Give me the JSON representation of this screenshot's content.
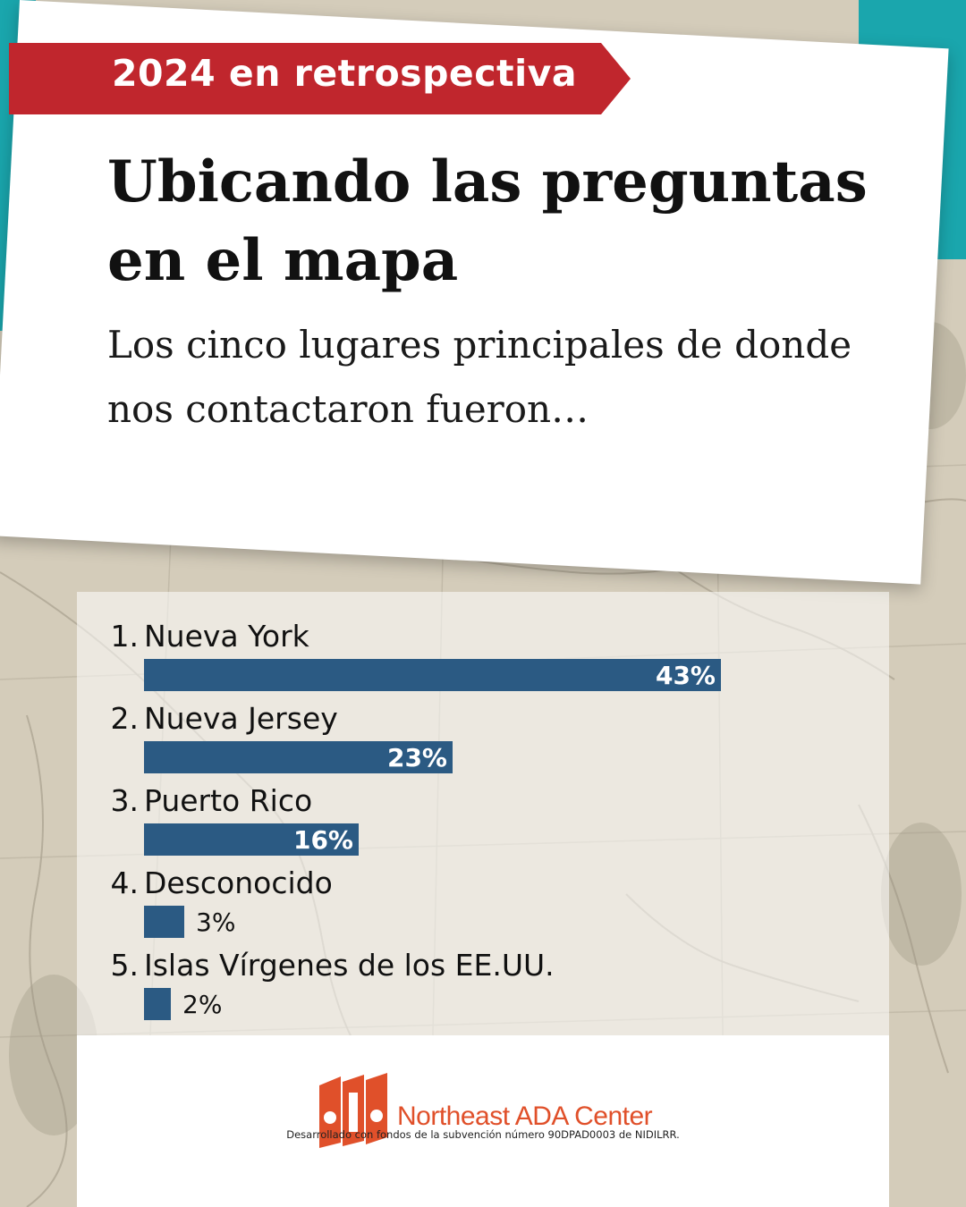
{
  "banner": {
    "label": "2024 en retrospectiva",
    "color": "#c0262d"
  },
  "title": "Ubicando las preguntas en el mapa",
  "subtitle": "Los cinco lugares principales de donde nos contactaron fueron…",
  "chart_data": {
    "type": "bar",
    "orientation": "horizontal",
    "bar_color": "#2b5a83",
    "value_suffix": "%",
    "items": [
      {
        "rank": "1.",
        "label": "Nueva York",
        "value": 43,
        "display": "43%"
      },
      {
        "rank": "2.",
        "label": "Nueva Jersey",
        "value": 23,
        "display": "23%"
      },
      {
        "rank": "3.",
        "label": "Puerto Rico",
        "value": 16,
        "display": "16%"
      },
      {
        "rank": "4.",
        "label": "Desconocido",
        "value": 3,
        "display": "3%"
      },
      {
        "rank": "5.",
        "label": "Islas Vírgenes de los EE.UU.",
        "value": 2,
        "display": "2%"
      }
    ],
    "xlim": [
      0,
      43
    ]
  },
  "logo": {
    "mark": "ada",
    "name": "Northeast ADA Center",
    "color": "#e0502a"
  },
  "credit": "Desarrollado con fondos de la subvención número 90DPAD0003 de NIDILRR."
}
